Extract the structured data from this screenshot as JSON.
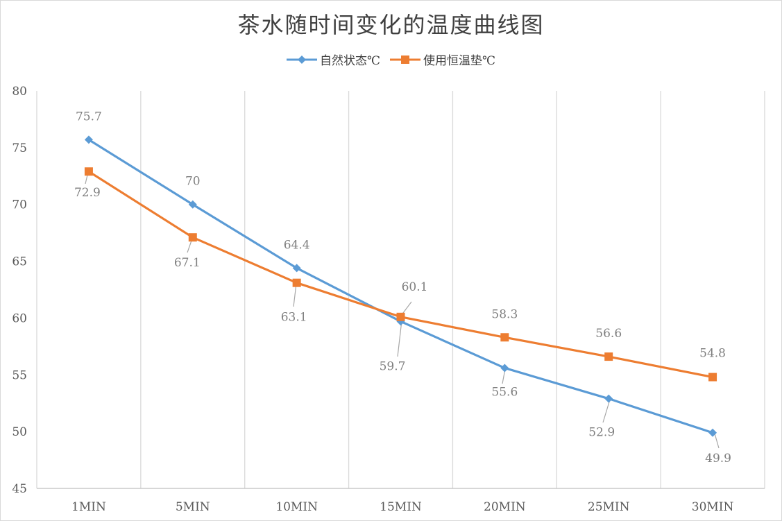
{
  "chart_data": {
    "type": "line",
    "title": "茶水随时间变化的温度曲线图",
    "categories": [
      "1MIN",
      "5MIN",
      "10MIN",
      "15MIN",
      "20MIN",
      "25MIN",
      "30MIN"
    ],
    "series": [
      {
        "name": "自然状态℃",
        "values": [
          75.7,
          70,
          64.4,
          59.7,
          55.6,
          52.9,
          49.9
        ],
        "color": "#5b9bd5",
        "marker": "diamond"
      },
      {
        "name": "使用恒温垫℃",
        "values": [
          72.9,
          67.1,
          63.1,
          60.1,
          58.3,
          56.6,
          54.8
        ],
        "color": "#ed7d31",
        "marker": "square"
      }
    ],
    "ylim": [
      45,
      80
    ],
    "yticks": [
      "45",
      "50",
      "55",
      "60",
      "65",
      "70",
      "75",
      "80"
    ],
    "grid": "vertical",
    "legend": "top-center",
    "data_labels": [
      [
        "75.7",
        "70",
        "64.4",
        "59.7",
        "55.6",
        "52.9",
        "49.9"
      ],
      [
        "72.9",
        "67.1",
        "63.1",
        "60.1",
        "58.3",
        "56.6",
        "54.8"
      ]
    ]
  }
}
